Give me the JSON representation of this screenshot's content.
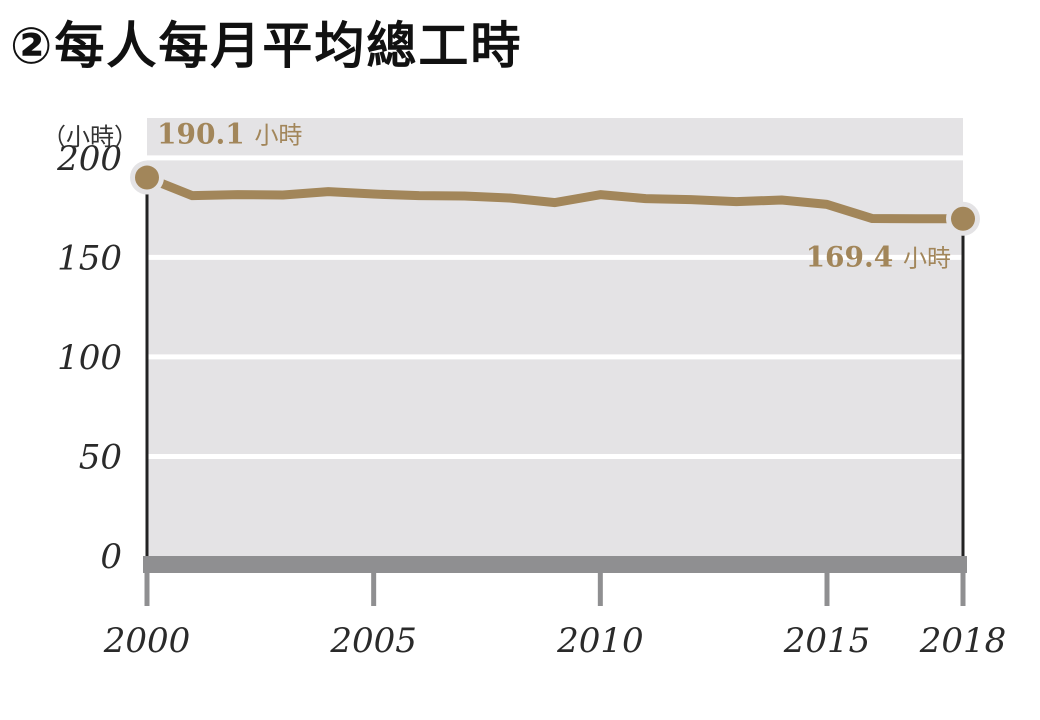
{
  "title": "②每人每月平均總工時",
  "colors": {
    "plot_background": "#e4e3e5",
    "gridline": "#ffffff",
    "axis_bar": "#8f8f91",
    "series": "#a2865a",
    "endpoint_halo": "#e4e3e5",
    "axis_text": "#2a2a2a",
    "highlight_text": "#a2865a"
  },
  "chart_data": {
    "type": "line",
    "y_unit_label": "（小時）",
    "ylim": [
      0,
      220
    ],
    "y_ticks": [
      0,
      50,
      100,
      150,
      200
    ],
    "xlim": [
      2000,
      2018
    ],
    "x_ticks": [
      2000,
      2005,
      2010,
      2015,
      2018
    ],
    "x_tick_highlight": [
      2000,
      2018
    ],
    "grid": true,
    "series": [
      {
        "x": [
          2000,
          2001,
          2002,
          2003,
          2004,
          2005,
          2006,
          2007,
          2008,
          2009,
          2010,
          2011,
          2012,
          2013,
          2014,
          2015,
          2016,
          2017,
          2018
        ],
        "values": [
          190.1,
          181.0,
          181.5,
          181.3,
          183.0,
          181.8,
          181.0,
          180.8,
          179.8,
          177.5,
          181.5,
          179.5,
          179.0,
          178.0,
          178.8,
          176.6,
          169.5,
          169.4,
          169.4
        ]
      }
    ],
    "annotations": [
      {
        "x": 2000,
        "value_text": "190.1",
        "unit_text": "小時"
      },
      {
        "x": 2018,
        "value_text": "169.4",
        "unit_text": "小時"
      }
    ]
  }
}
